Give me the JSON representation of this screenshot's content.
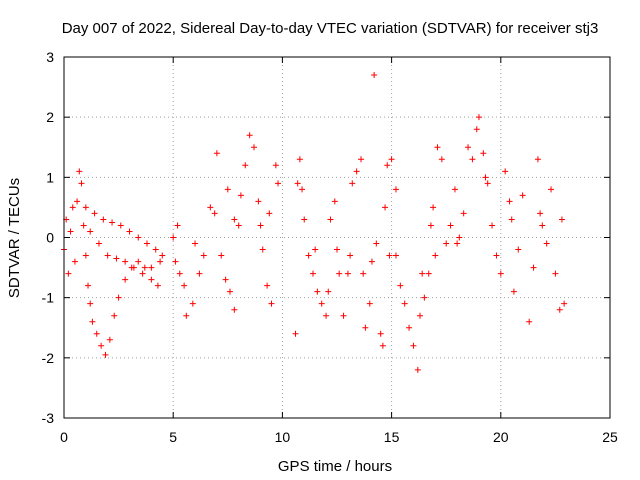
{
  "chart_data": {
    "type": "scatter",
    "title": "Day 007 of 2022, Sidereal Day-to-day VTEC variation (SDTVAR) for receiver stj3",
    "xlabel": "GPS time / hours",
    "ylabel": "SDTVAR / TECUs",
    "xlim": [
      0,
      25
    ],
    "ylim": [
      -3,
      3
    ],
    "xticks": [
      "0",
      "5",
      "10",
      "15",
      "20",
      "25"
    ],
    "yticks": [
      "-3",
      "-2",
      "-1",
      "0",
      "1",
      "2",
      "3"
    ],
    "grid": true,
    "marker": "+",
    "color": "#ff0000",
    "series": [
      {
        "name": "stj3",
        "points": [
          [
            0.0,
            -0.2
          ],
          [
            0.1,
            0.3
          ],
          [
            0.2,
            -0.6
          ],
          [
            0.3,
            0.1
          ],
          [
            0.4,
            0.5
          ],
          [
            0.5,
            -0.4
          ],
          [
            0.6,
            0.6
          ],
          [
            0.7,
            1.1
          ],
          [
            0.8,
            0.9
          ],
          [
            0.9,
            0.2
          ],
          [
            1.0,
            -0.3
          ],
          [
            1.1,
            -0.8
          ],
          [
            1.2,
            -1.1
          ],
          [
            1.3,
            -1.4
          ],
          [
            1.5,
            -1.6
          ],
          [
            1.7,
            -1.8
          ],
          [
            1.9,
            -1.95
          ],
          [
            2.1,
            -1.7
          ],
          [
            2.3,
            -1.3
          ],
          [
            2.5,
            -1.0
          ],
          [
            2.8,
            -0.7
          ],
          [
            3.1,
            -0.5
          ],
          [
            3.4,
            -0.4
          ],
          [
            3.7,
            -0.5
          ],
          [
            4.0,
            -0.7
          ],
          [
            4.3,
            -0.8
          ],
          [
            1.0,
            0.5
          ],
          [
            1.4,
            0.4
          ],
          [
            1.8,
            0.3
          ],
          [
            2.2,
            0.25
          ],
          [
            2.6,
            0.2
          ],
          [
            3.0,
            0.1
          ],
          [
            3.4,
            0.0
          ],
          [
            3.8,
            -0.1
          ],
          [
            4.2,
            -0.2
          ],
          [
            4.5,
            -0.3
          ],
          [
            1.2,
            0.1
          ],
          [
            1.6,
            -0.1
          ],
          [
            2.0,
            -0.3
          ],
          [
            2.4,
            -0.35
          ],
          [
            2.8,
            -0.4
          ],
          [
            3.2,
            -0.5
          ],
          [
            3.6,
            -0.6
          ],
          [
            4.0,
            -0.5
          ],
          [
            4.4,
            -0.4
          ],
          [
            5.0,
            0.0
          ],
          [
            5.1,
            -0.4
          ],
          [
            5.2,
            0.2
          ],
          [
            5.3,
            -0.6
          ],
          [
            5.5,
            -0.8
          ],
          [
            5.6,
            -1.3
          ],
          [
            5.9,
            -1.1
          ],
          [
            6.2,
            -0.6
          ],
          [
            6.4,
            -0.3
          ],
          [
            6.7,
            0.5
          ],
          [
            6.9,
            0.4
          ],
          [
            7.2,
            -0.3
          ],
          [
            7.4,
            -0.7
          ],
          [
            7.6,
            -0.9
          ],
          [
            7.8,
            -1.2
          ],
          [
            7.0,
            1.4
          ],
          [
            7.5,
            0.8
          ],
          [
            7.8,
            0.3
          ],
          [
            8.1,
            0.7
          ],
          [
            8.3,
            1.2
          ],
          [
            8.5,
            1.7
          ],
          [
            8.7,
            1.5
          ],
          [
            8.9,
            0.6
          ],
          [
            9.1,
            -0.2
          ],
          [
            9.3,
            -0.8
          ],
          [
            9.5,
            -1.1
          ],
          [
            9.7,
            1.2
          ],
          [
            9.8,
            0.9
          ],
          [
            9.4,
            0.4
          ],
          [
            10.6,
            -1.6
          ],
          [
            10.7,
            0.9
          ],
          [
            10.8,
            1.3
          ],
          [
            10.9,
            0.8
          ],
          [
            11.0,
            0.3
          ],
          [
            11.2,
            -0.3
          ],
          [
            11.4,
            -0.6
          ],
          [
            11.6,
            -0.9
          ],
          [
            11.8,
            -1.1
          ],
          [
            12.0,
            -1.3
          ],
          [
            12.2,
            0.3
          ],
          [
            12.4,
            0.6
          ],
          [
            12.6,
            -0.6
          ],
          [
            12.8,
            -1.3
          ],
          [
            13.0,
            -0.6
          ],
          [
            13.2,
            0.9
          ],
          [
            13.4,
            1.1
          ],
          [
            13.6,
            1.3
          ],
          [
            13.8,
            -1.5
          ],
          [
            14.0,
            -1.1
          ],
          [
            14.1,
            -0.4
          ],
          [
            14.2,
            2.7
          ],
          [
            14.3,
            -0.1
          ],
          [
            14.5,
            -1.6
          ],
          [
            14.6,
            -1.8
          ],
          [
            14.7,
            0.5
          ],
          [
            14.8,
            1.2
          ],
          [
            15.0,
            1.3
          ],
          [
            15.2,
            -0.3
          ],
          [
            15.4,
            -0.8
          ],
          [
            15.6,
            -1.1
          ],
          [
            15.8,
            -1.5
          ],
          [
            16.0,
            -1.8
          ],
          [
            16.2,
            -2.2
          ],
          [
            16.3,
            -1.3
          ],
          [
            16.5,
            -1.0
          ],
          [
            16.7,
            -0.6
          ],
          [
            16.9,
            0.5
          ],
          [
            17.1,
            1.5
          ],
          [
            17.3,
            1.3
          ],
          [
            17.5,
            -0.1
          ],
          [
            17.7,
            0.2
          ],
          [
            17.9,
            0.8
          ],
          [
            18.1,
            0.0
          ],
          [
            18.3,
            0.4
          ],
          [
            18.5,
            1.5
          ],
          [
            18.7,
            1.3
          ],
          [
            18.9,
            1.8
          ],
          [
            19.0,
            2.0
          ],
          [
            19.2,
            1.4
          ],
          [
            19.4,
            0.9
          ],
          [
            19.6,
            0.2
          ],
          [
            19.8,
            -0.3
          ],
          [
            20.0,
            -0.6
          ],
          [
            20.2,
            1.1
          ],
          [
            20.4,
            0.6
          ],
          [
            20.6,
            -0.9
          ],
          [
            20.8,
            -0.2
          ],
          [
            21.0,
            0.7
          ],
          [
            21.3,
            -1.4
          ],
          [
            21.5,
            -0.5
          ],
          [
            21.7,
            1.3
          ],
          [
            21.9,
            0.2
          ],
          [
            22.1,
            -0.1
          ],
          [
            22.3,
            0.8
          ],
          [
            22.5,
            -0.6
          ],
          [
            22.7,
            -1.2
          ],
          [
            22.8,
            0.3
          ],
          [
            22.9,
            -1.1
          ],
          [
            17.0,
            -0.3
          ],
          [
            16.4,
            -0.6
          ],
          [
            15.2,
            0.8
          ],
          [
            13.7,
            -0.6
          ],
          [
            12.5,
            -0.2
          ],
          [
            11.5,
            -0.2
          ],
          [
            9.0,
            0.2
          ],
          [
            8.0,
            0.2
          ],
          [
            6.0,
            -0.1
          ],
          [
            20.5,
            0.3
          ],
          [
            21.8,
            0.4
          ],
          [
            19.3,
            1.0
          ],
          [
            18.0,
            -0.1
          ],
          [
            16.8,
            0.2
          ],
          [
            14.9,
            -0.3
          ],
          [
            13.1,
            -0.3
          ],
          [
            12.1,
            -0.9
          ]
        ]
      }
    ]
  }
}
